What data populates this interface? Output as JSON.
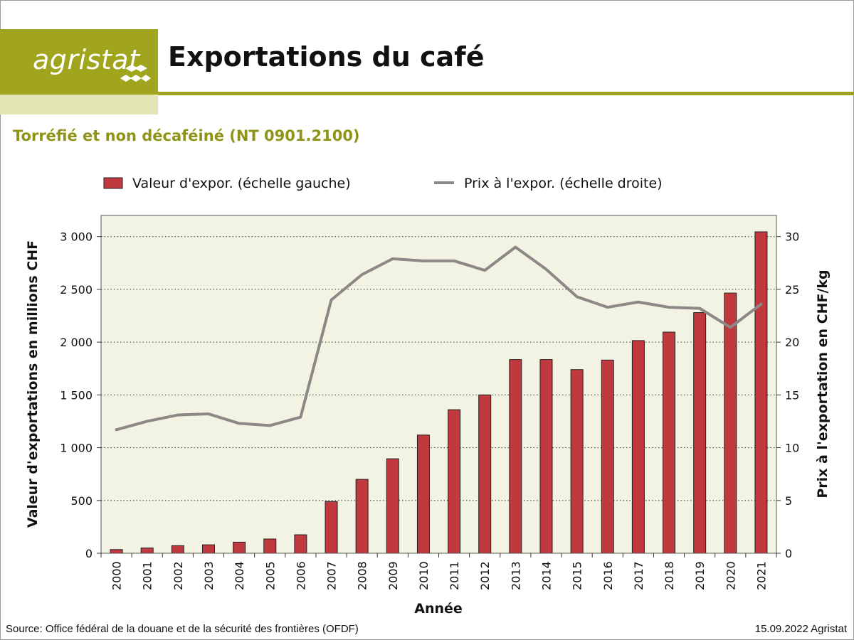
{
  "header": {
    "brand": "agristat",
    "title": "Exportations du café",
    "subtitle": "Torréfié et non décaféiné (NT 0901.2100)"
  },
  "footer": {
    "source": "Source: Office fédéral de la douane et de la sécurité des frontières (OFDF)",
    "date": "15.09.2022 Agristat"
  },
  "colors": {
    "brand": "#a0a51d",
    "brand_light": "#e3e6b4",
    "subtitle": "#8f9418",
    "bar": "#c0393f",
    "line": "#8c8886",
    "plot_bg": "#f2f3e2"
  },
  "chart_data": {
    "type": "bar",
    "categories": [
      "2000",
      "2001",
      "2002",
      "2003",
      "2004",
      "2005",
      "2006",
      "2007",
      "2008",
      "2009",
      "2010",
      "2011",
      "2012",
      "2013",
      "2014",
      "2015",
      "2016",
      "2017",
      "2018",
      "2019",
      "2020",
      "2021"
    ],
    "series": [
      {
        "name": "Valeur d'expor. (échelle gauche)",
        "type": "bar",
        "axis": "left",
        "values": [
          35,
          50,
          72,
          80,
          105,
          135,
          175,
          490,
          700,
          895,
          1120,
          1360,
          1500,
          1835,
          1835,
          1740,
          1830,
          2015,
          2095,
          2280,
          2465,
          3045
        ]
      },
      {
        "name": "Prix à l'expor. (échelle droite)",
        "type": "line",
        "axis": "right",
        "values": [
          11.7,
          12.5,
          13.1,
          13.2,
          12.3,
          12.1,
          12.9,
          24.0,
          26.4,
          27.9,
          27.7,
          27.7,
          26.8,
          29.0,
          26.9,
          24.3,
          23.3,
          23.8,
          23.3,
          23.2,
          21.4,
          23.6
        ]
      }
    ],
    "xlabel": "Année",
    "ylabel_left": "Valeur d'exportations en millions CHF",
    "ylabel_right": "Prix à l'exportation en CHF/kg",
    "ylim_left": [
      0,
      3200
    ],
    "ylim_right": [
      0,
      32
    ],
    "yticks_left": [
      0,
      500,
      1000,
      1500,
      2000,
      2500,
      3000
    ],
    "yticks_left_labels": [
      "0",
      "500",
      "1 000",
      "1 500",
      "2 000",
      "2 500",
      "3 000"
    ],
    "yticks_right": [
      0,
      5,
      10,
      15,
      20,
      25,
      30
    ],
    "yticks_right_labels": [
      "0",
      "5",
      "10",
      "15",
      "20",
      "25",
      "30"
    ],
    "grid": "horizontal dotted",
    "legend_position": "top"
  }
}
